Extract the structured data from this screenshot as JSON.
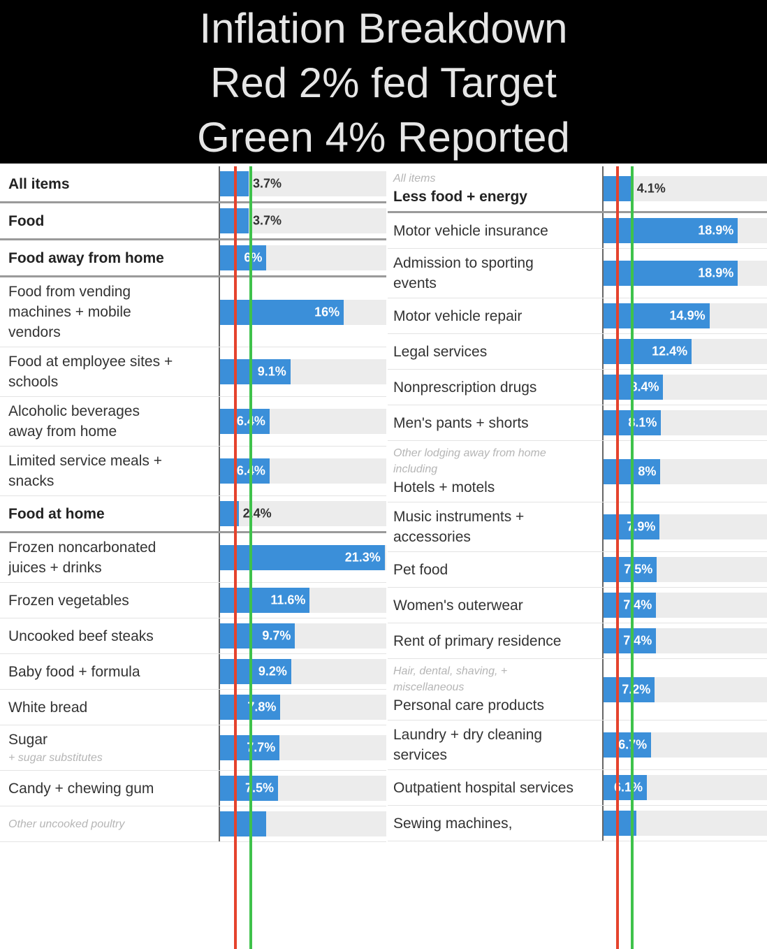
{
  "header": {
    "lines": [
      "Inflation Breakdown",
      "Red 2% fed Target",
      "Green 4% Reported"
    ]
  },
  "chart_data": [
    {
      "type": "bar",
      "categories": [
        "All items",
        "Food",
        "Food away from home",
        "Food from vending machines + mobile vendors",
        "Food at employee sites + schools",
        "Alcoholic beverages away from home",
        "Limited service meals + snacks",
        "Food at home",
        "Frozen noncarbonated juices + drinks",
        "Frozen vegetables",
        "Uncooked beef steaks",
        "Baby food + formula",
        "White bread",
        "Sugar",
        "Candy + chewing gum",
        null
      ],
      "notes": [
        null,
        null,
        null,
        null,
        null,
        null,
        null,
        null,
        null,
        null,
        null,
        null,
        null,
        null,
        null,
        "Other uncooked poultry"
      ],
      "subnotes": [
        null,
        null,
        null,
        null,
        null,
        null,
        null,
        null,
        null,
        null,
        null,
        null,
        null,
        "+ sugar substitutes",
        null,
        null
      ],
      "bold": [
        true,
        true,
        true,
        false,
        false,
        false,
        false,
        true,
        false,
        false,
        false,
        false,
        false,
        false,
        false,
        false
      ],
      "values": [
        3.7,
        3.7,
        6,
        16,
        9.1,
        6.4,
        6.4,
        2.4,
        21.3,
        11.6,
        9.7,
        9.2,
        7.8,
        7.7,
        7.5,
        6
      ],
      "value_labels": [
        "3.7%",
        "3.7%",
        "6%",
        "16%",
        "9.1%",
        "6.4%",
        "6.4%",
        "2.4%",
        "21.3%",
        "11.6%",
        "9.7%",
        "9.2%",
        "7.8%",
        "7.7%",
        "7.5%",
        null
      ],
      "color": "#3b8fd9",
      "xlim": [
        0,
        21.5
      ],
      "reference_lines": [
        {
          "value": 2,
          "color": "#e5432d"
        },
        {
          "value": 4,
          "color": "#3fc24b"
        }
      ]
    },
    {
      "type": "bar",
      "categories": [
        "Less food + energy",
        "Motor vehicle insurance",
        "Admission to sporting events",
        "Motor vehicle repair",
        "Legal services",
        "Nonprescription drugs",
        "Men's pants + shorts",
        "Hotels + motels",
        "Music instruments + accessories",
        "Pet food",
        "Women's outerwear",
        "Rent of primary residence",
        "Personal care products",
        "Laundry + dry cleaning services",
        "Outpatient hospital services",
        "Sewing machines,"
      ],
      "notes": [
        "All items",
        null,
        null,
        null,
        null,
        null,
        null,
        "Other lodging away from home including",
        null,
        null,
        null,
        null,
        "Hair, dental, shaving, + miscellaneous",
        null,
        null,
        null
      ],
      "subnotes": [
        null,
        null,
        null,
        null,
        null,
        null,
        null,
        null,
        null,
        null,
        null,
        null,
        null,
        null,
        null,
        null
      ],
      "bold": [
        true,
        false,
        false,
        false,
        false,
        false,
        false,
        false,
        false,
        false,
        false,
        false,
        false,
        false,
        false,
        false
      ],
      "values": [
        4.1,
        18.9,
        18.9,
        14.9,
        12.4,
        8.4,
        8.1,
        8,
        7.9,
        7.5,
        7.4,
        7.4,
        7.2,
        6.7,
        6.1,
        4.6
      ],
      "value_labels": [
        "4.1%",
        "18.9%",
        "18.9%",
        "14.9%",
        "12.4%",
        "8.4%",
        "8.1%",
        "8%",
        "7.9%",
        "7.5%",
        "7.4%",
        "7.4%",
        "7.2%",
        "6.7%",
        "6.1%",
        null
      ],
      "color": "#3b8fd9",
      "xlim": [
        0,
        23
      ],
      "reference_lines": [
        {
          "value": 2,
          "color": "#e5432d"
        },
        {
          "value": 4,
          "color": "#3fc24b"
        }
      ]
    }
  ]
}
